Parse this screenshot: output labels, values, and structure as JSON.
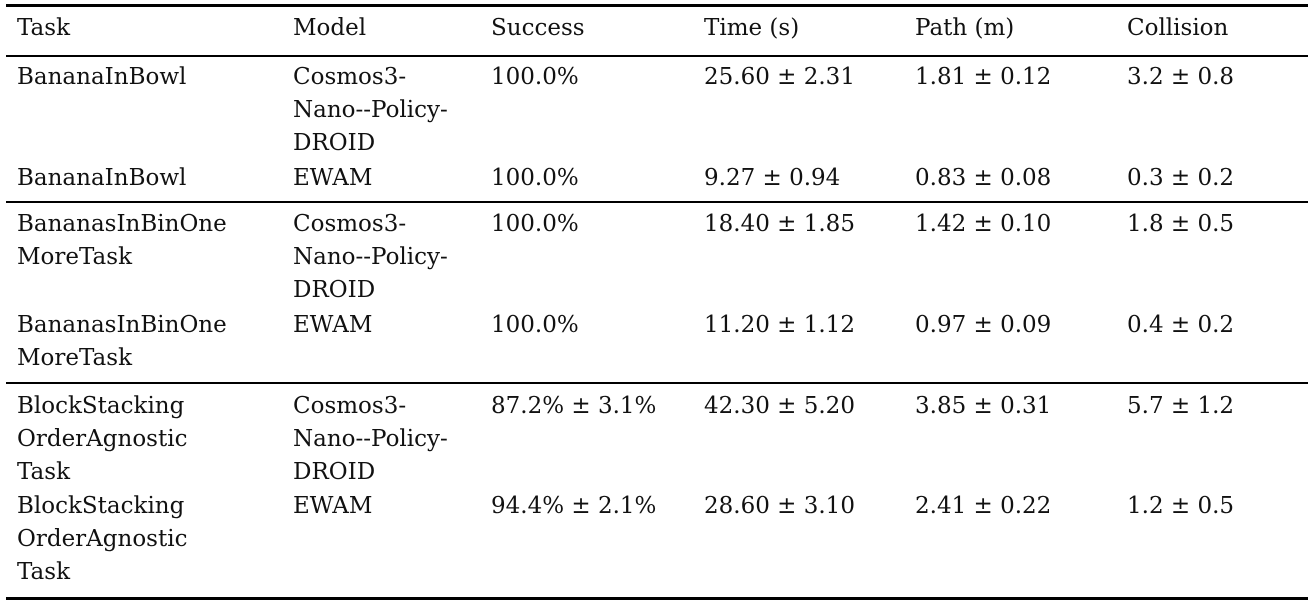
{
  "table": {
    "headers": [
      "Task",
      "Model",
      "Success",
      "Time (s)",
      "Path (m)",
      "Collision"
    ],
    "rows": [
      [
        "BananaInBowl",
        "Cosmos3-\nNano--Policy-\nDROID",
        "100.0%",
        "25.60 ± 2.31",
        "1.81 ± 0.12",
        "3.2 ± 0.8"
      ],
      [
        "BananaInBowl",
        "EWAM",
        "100.0%",
        "9.27 ± 0.94",
        "0.83 ± 0.08",
        "0.3 ± 0.2"
      ],
      [
        "BananasInBinOne\nMoreTask",
        "Cosmos3-\nNano--Policy-\nDROID",
        "100.0%",
        "18.40 ± 1.85",
        "1.42 ± 0.10",
        "1.8 ± 0.5"
      ],
      [
        "BananasInBinOne\nMoreTask",
        "EWAM",
        "100.0%",
        "11.20 ± 1.12",
        "0.97 ± 0.09",
        "0.4 ± 0.2"
      ],
      [
        "BlockStacking\nOrderAgnostic\nTask",
        "Cosmos3-\nNano--Policy-\nDROID",
        "87.2% ± 3.1%",
        "42.30 ± 5.20",
        "3.85 ± 0.31",
        "5.7 ± 1.2"
      ],
      [
        "BlockStacking\nOrderAgnostic\nTask",
        "EWAM",
        "94.4% ± 2.1%",
        "28.60 ± 3.10",
        "2.41 ± 0.22",
        "1.2 ± 0.5"
      ]
    ]
  }
}
